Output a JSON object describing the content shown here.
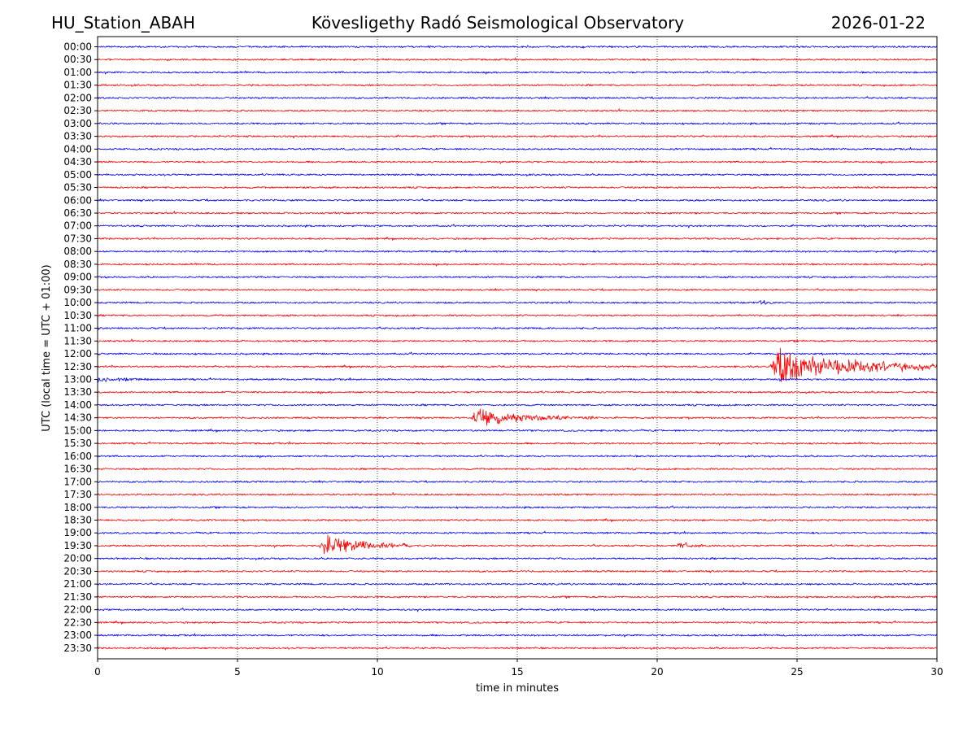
{
  "header": {
    "station": "HU_Station_ABAH",
    "observatory": "Kövesligethy Radó Seismological Observatory",
    "date": "2026-01-22"
  },
  "chart_data": {
    "type": "line",
    "title": "Kövesligethy Radó Seismological Observatory",
    "xlabel": "time in minutes",
    "ylabel": "UTC (local time = UTC + 01:00)",
    "xlim": [
      0,
      30
    ],
    "x_ticks": [
      "0",
      "5",
      "10",
      "15",
      "20",
      "25",
      "30"
    ],
    "grid": "vertical dotted at 5-minute ticks",
    "colors": {
      "even": "#0000ff",
      "odd": "#ff0000"
    },
    "rows": [
      "00:00",
      "00:30",
      "01:00",
      "01:30",
      "02:00",
      "02:30",
      "03:00",
      "03:30",
      "04:00",
      "04:30",
      "05:00",
      "05:30",
      "06:00",
      "06:30",
      "07:00",
      "07:30",
      "08:00",
      "08:30",
      "09:00",
      "09:30",
      "10:00",
      "10:30",
      "11:00",
      "11:30",
      "12:00",
      "12:30",
      "13:00",
      "13:30",
      "14:00",
      "14:30",
      "15:00",
      "15:30",
      "16:00",
      "16:30",
      "17:00",
      "17:30",
      "18:00",
      "18:30",
      "19:00",
      "19:30",
      "20:00",
      "20:30",
      "21:00",
      "21:30",
      "22:00",
      "22:30",
      "23:00",
      "23:30"
    ],
    "noise_amplitude": 1.2,
    "events": [
      {
        "row": "10:00",
        "start": 23.6,
        "end": 24.6,
        "peak": 5
      },
      {
        "row": "12:30",
        "start": 24.0,
        "end": 30.0,
        "peak": 28
      },
      {
        "row": "13:00",
        "start": 0.0,
        "end": 1.8,
        "peak": 3.5
      },
      {
        "row": "14:30",
        "start": 13.3,
        "end": 18.0,
        "peak": 13
      },
      {
        "row": "19:30",
        "start": 7.9,
        "end": 11.2,
        "peak": 16
      },
      {
        "row": "19:30",
        "start": 20.7,
        "end": 22.2,
        "peak": 6
      }
    ]
  }
}
